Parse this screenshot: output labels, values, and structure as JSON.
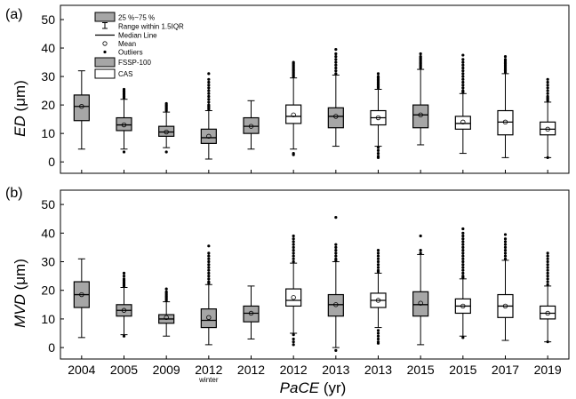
{
  "chart_data": [
    {
      "type": "box",
      "panel_label": "(a)",
      "ylabel_italic": "ED",
      "ylabel_unit": " (μm)",
      "ylim": [
        -4,
        55
      ],
      "yticks": [
        0,
        10,
        20,
        30,
        40,
        50
      ],
      "categories": [
        "2004",
        "2005",
        "2009",
        "2012",
        "2012",
        "2012",
        "2013",
        "2013",
        "2015",
        "2015",
        "2017",
        "2019"
      ],
      "series_type": [
        "FSSP-100",
        "FSSP-100",
        "FSSP-100",
        "FSSP-100",
        "FSSP-100",
        "CAS",
        "FSSP-100",
        "CAS",
        "FSSP-100",
        "CAS",
        "CAS",
        "CAS"
      ],
      "boxes": [
        {
          "q1": 14.5,
          "q3": 23.5,
          "median": 19.5,
          "mean": 19.5,
          "whisker_low": 4.5,
          "whisker_high": 32,
          "outliers_low": [],
          "outliers_high": []
        },
        {
          "q1": 11,
          "q3": 15.5,
          "median": 13,
          "mean": 13,
          "whisker_low": 4.5,
          "whisker_high": 22,
          "outliers_low": [
            3.5
          ],
          "outliers_high": [
            22.5,
            23,
            23.5,
            24,
            24.5,
            25,
            25.5
          ]
        },
        {
          "q1": 9,
          "q3": 12.5,
          "median": 10.5,
          "mean": 10.5,
          "whisker_low": 5,
          "whisker_high": 17.5,
          "outliers_low": [
            3.5
          ],
          "outliers_high": [
            18,
            18.5,
            19,
            19.5,
            20,
            20.5
          ]
        },
        {
          "q1": 6.5,
          "q3": 11.5,
          "median": 8.5,
          "mean": 9,
          "whisker_low": 1,
          "whisker_high": 18,
          "outliers_low": [],
          "outliers_high": [
            18.5,
            19,
            19.5,
            20,
            21,
            22,
            23,
            24,
            25,
            26,
            27,
            28,
            29,
            31
          ]
        },
        {
          "q1": 10,
          "q3": 15.5,
          "median": 12.5,
          "mean": 12.5,
          "whisker_low": 4.5,
          "whisker_high": 21.5,
          "outliers_low": [],
          "outliers_high": []
        },
        {
          "q1": 13.5,
          "q3": 20,
          "median": 16,
          "mean": 16.5,
          "whisker_low": 4.5,
          "whisker_high": 29.5,
          "outliers_low": [
            3,
            2.5
          ],
          "outliers_high": [
            30,
            30.5,
            31,
            31.5,
            32,
            32.5,
            33,
            33.5,
            34,
            34.5,
            35
          ]
        },
        {
          "q1": 12,
          "q3": 19,
          "median": 16,
          "mean": 16,
          "whisker_low": 5.5,
          "whisker_high": 30.5,
          "outliers_low": [],
          "outliers_high": [
            31,
            32,
            33,
            34,
            35,
            36,
            37,
            38,
            39.5
          ]
        },
        {
          "q1": 13,
          "q3": 18,
          "median": 15.5,
          "mean": 15.5,
          "whisker_low": 5.5,
          "whisker_high": 25.5,
          "outliers_low": [
            5,
            4,
            3,
            2,
            1.5
          ],
          "outliers_high": [
            26,
            26.5,
            27,
            27.5,
            28,
            28.5,
            29,
            29.5,
            30,
            31
          ]
        },
        {
          "q1": 12,
          "q3": 20,
          "median": 16.5,
          "mean": 16.5,
          "whisker_low": 6,
          "whisker_high": 32.5,
          "outliers_low": [],
          "outliers_high": [
            33,
            33.5,
            34,
            34.5,
            35,
            35.5,
            36,
            36.5,
            37,
            38
          ]
        },
        {
          "q1": 11.5,
          "q3": 16,
          "median": 13.5,
          "mean": 14,
          "whisker_low": 3,
          "whisker_high": 24,
          "outliers_low": [],
          "outliers_high": [
            24.5,
            25,
            26,
            27,
            28,
            29,
            30,
            31,
            32,
            33,
            34,
            35,
            36,
            37.5
          ]
        },
        {
          "q1": 9.5,
          "q3": 18,
          "median": 14,
          "mean": 14,
          "whisker_low": 1.5,
          "whisker_high": 31,
          "outliers_low": [],
          "outliers_high": [
            31.5,
            32,
            32.5,
            33,
            33.5,
            34,
            34.5,
            35,
            35.5,
            36,
            37
          ]
        },
        {
          "q1": 9.5,
          "q3": 14,
          "median": 11.5,
          "mean": 11.5,
          "whisker_low": 1.5,
          "whisker_high": 21,
          "outliers_low": [
            1.5
          ],
          "outliers_high": [
            21.5,
            22,
            22.5,
            23,
            24,
            25,
            26,
            27,
            28,
            29
          ]
        }
      ]
    },
    {
      "type": "box",
      "panel_label": "(b)",
      "ylabel_italic": "MVD",
      "ylabel_unit": " (μm)",
      "ylim": [
        -4,
        55
      ],
      "yticks": [
        0,
        10,
        20,
        30,
        40,
        50
      ],
      "categories": [
        "2004",
        "2005",
        "2009",
        "2012",
        "2012",
        "2012",
        "2013",
        "2013",
        "2015",
        "2015",
        "2017",
        "2019"
      ],
      "series_type": [
        "FSSP-100",
        "FSSP-100",
        "FSSP-100",
        "FSSP-100",
        "FSSP-100",
        "CAS",
        "FSSP-100",
        "CAS",
        "FSSP-100",
        "CAS",
        "CAS",
        "CAS"
      ],
      "boxes": [
        {
          "q1": 14,
          "q3": 23,
          "median": 18.5,
          "mean": 18.5,
          "whisker_low": 3.5,
          "whisker_high": 31,
          "outliers_low": [],
          "outliers_high": []
        },
        {
          "q1": 11,
          "q3": 15,
          "median": 13,
          "mean": 13,
          "whisker_low": 4.5,
          "whisker_high": 21,
          "outliers_low": [
            4
          ],
          "outliers_high": [
            21.5,
            22,
            22.5,
            23,
            23.5,
            24,
            25,
            26
          ]
        },
        {
          "q1": 8.5,
          "q3": 11.5,
          "median": 10,
          "mean": 10.5,
          "whisker_low": 4,
          "whisker_high": 16,
          "outliers_low": [],
          "outliers_high": [
            16.5,
            17,
            17.5,
            18,
            18.5,
            19,
            19.5,
            20.5
          ]
        },
        {
          "q1": 7,
          "q3": 13.5,
          "median": 9.5,
          "mean": 10.5,
          "whisker_low": 1,
          "whisker_high": 22,
          "outliers_low": [],
          "outliers_high": [
            22.5,
            23,
            24,
            25,
            26,
            27,
            28,
            29,
            30,
            31,
            32,
            33,
            35.5
          ]
        },
        {
          "q1": 9,
          "q3": 14.5,
          "median": 12,
          "mean": 12,
          "whisker_low": 3,
          "whisker_high": 21.5,
          "outliers_low": [],
          "outliers_high": []
        },
        {
          "q1": 14.5,
          "q3": 20.5,
          "median": 16.5,
          "mean": 17.5,
          "whisker_low": 5,
          "whisker_high": 29.5,
          "outliers_low": [
            4.5,
            3,
            2,
            1
          ],
          "outliers_high": [
            30,
            31,
            32,
            33,
            34,
            35,
            36,
            37,
            38,
            39
          ]
        },
        {
          "q1": 11,
          "q3": 18.5,
          "median": 15,
          "mean": 15,
          "whisker_low": 0,
          "whisker_high": 30,
          "outliers_low": [
            -1
          ],
          "outliers_high": [
            30.5,
            31,
            32,
            33,
            34,
            35,
            36,
            45.5
          ]
        },
        {
          "q1": 14,
          "q3": 19,
          "median": 16.5,
          "mean": 16.5,
          "whisker_low": 7,
          "whisker_high": 26,
          "outliers_low": [
            6,
            5,
            4,
            3,
            2,
            1.5
          ],
          "outliers_high": [
            26.5,
            27,
            28,
            29,
            30,
            31,
            32,
            33,
            34
          ]
        },
        {
          "q1": 11,
          "q3": 19.5,
          "median": 15,
          "mean": 15.5,
          "whisker_low": 1,
          "whisker_high": 32.5,
          "outliers_low": [],
          "outliers_high": [
            33,
            34,
            39
          ]
        },
        {
          "q1": 12,
          "q3": 17,
          "median": 14.5,
          "mean": 14.5,
          "whisker_low": 4,
          "whisker_high": 24,
          "outliers_low": [
            3.5
          ],
          "outliers_high": [
            24.5,
            25,
            26,
            27,
            28,
            29,
            30,
            31,
            32,
            33,
            34,
            35,
            36,
            37,
            38,
            39,
            40,
            41.5
          ]
        },
        {
          "q1": 10.5,
          "q3": 18.5,
          "median": 14.5,
          "mean": 14.5,
          "whisker_low": 2.5,
          "whisker_high": 30.5,
          "outliers_low": [],
          "outliers_high": [
            31,
            32,
            33,
            34,
            35,
            36,
            37,
            38,
            39.5
          ]
        },
        {
          "q1": 10,
          "q3": 14.5,
          "median": 12,
          "mean": 12,
          "whisker_low": 2,
          "whisker_high": 21.5,
          "outliers_low": [
            2
          ],
          "outliers_high": [
            22,
            23,
            24,
            25,
            26,
            27,
            28,
            29,
            30,
            31,
            32,
            33
          ]
        }
      ]
    }
  ],
  "xaxis": {
    "label_italic": "PaCE",
    "label_unit": " (yr)",
    "sublabel": "winter",
    "sublabel_index": 3
  },
  "legend": {
    "items": [
      {
        "key": "box",
        "label": "25 %~75 %"
      },
      {
        "key": "range",
        "label": "Range within 1.5IQR"
      },
      {
        "key": "median",
        "label": "Median Line"
      },
      {
        "key": "mean",
        "label": "Mean"
      },
      {
        "key": "outlier",
        "label": "Outliers"
      },
      {
        "key": "fssp",
        "label": "FSSP-100"
      },
      {
        "key": "cas",
        "label": "CAS"
      }
    ]
  },
  "colors": {
    "fssp_fill": "#a6a6a6",
    "cas_fill": "#ffffff",
    "stroke": "#000000"
  }
}
